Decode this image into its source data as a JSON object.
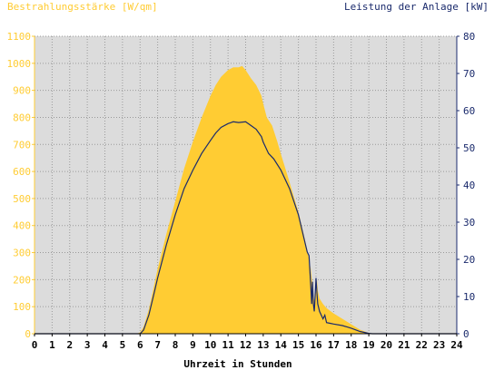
{
  "colors": {
    "irradiance": "#FFCC33",
    "power": "#1A2A6C",
    "plot_bg": "#DCDCDC",
    "left_axis": "#FFCC33",
    "right_axis": "#1A2A6C",
    "grid": "#9A9A9A"
  },
  "chart_data": {
    "type": "area",
    "title_left": "Bestrahlungsstärke [W/qm]",
    "title_right": "Leistung der Anlage [kW]",
    "xlabel": "Uhrzeit in Stunden",
    "xlim": [
      0,
      24
    ],
    "x_ticks": [
      "0",
      "1",
      "2",
      "3",
      "4",
      "5",
      "6",
      "7",
      "8",
      "9",
      "10",
      "11",
      "12",
      "13",
      "14",
      "15",
      "16",
      "17",
      "18",
      "19",
      "20",
      "21",
      "22",
      "23",
      "24"
    ],
    "y_left": {
      "lim": [
        0,
        1100
      ],
      "ticks": [
        "0",
        "100",
        "200",
        "300",
        "400",
        "500",
        "600",
        "700",
        "800",
        "900",
        "1000",
        "1100"
      ]
    },
    "y_right": {
      "lim": [
        0,
        80
      ],
      "ticks": [
        "0",
        "10",
        "20",
        "30",
        "40",
        "50",
        "60",
        "70",
        "80"
      ]
    },
    "grid": true,
    "series": [
      {
        "name": "Bestrahlungsstärke [W/qm]",
        "axis": "left",
        "kind": "area",
        "points": [
          [
            0,
            0
          ],
          [
            5.8,
            0
          ],
          [
            6.0,
            5
          ],
          [
            6.2,
            25
          ],
          [
            6.5,
            90
          ],
          [
            6.8,
            180
          ],
          [
            7.0,
            240
          ],
          [
            7.5,
            370
          ],
          [
            8.0,
            490
          ],
          [
            8.5,
            610
          ],
          [
            9.0,
            710
          ],
          [
            9.5,
            800
          ],
          [
            10.0,
            880
          ],
          [
            10.3,
            920
          ],
          [
            10.6,
            950
          ],
          [
            11.0,
            975
          ],
          [
            11.3,
            985
          ],
          [
            11.6,
            985
          ],
          [
            11.8,
            990
          ],
          [
            12.0,
            975
          ],
          [
            12.3,
            945
          ],
          [
            12.6,
            920
          ],
          [
            12.9,
            880
          ],
          [
            13.0,
            850
          ],
          [
            13.2,
            800
          ],
          [
            13.5,
            770
          ],
          [
            13.8,
            710
          ],
          [
            14.0,
            665
          ],
          [
            14.5,
            560
          ],
          [
            15.0,
            450
          ],
          [
            15.3,
            370
          ],
          [
            15.5,
            310
          ],
          [
            15.7,
            240
          ],
          [
            15.8,
            180
          ],
          [
            15.9,
            120
          ],
          [
            16.0,
            160
          ],
          [
            16.05,
            200
          ],
          [
            16.1,
            160
          ],
          [
            16.2,
            130
          ],
          [
            16.4,
            110
          ],
          [
            16.6,
            95
          ],
          [
            16.8,
            85
          ],
          [
            17.0,
            75
          ],
          [
            17.5,
            55
          ],
          [
            18.0,
            35
          ],
          [
            18.5,
            15
          ],
          [
            19.0,
            3
          ],
          [
            19.2,
            0
          ],
          [
            24,
            0
          ]
        ]
      },
      {
        "name": "Leistung der Anlage [kW]",
        "axis": "right",
        "kind": "line",
        "points": [
          [
            0,
            0
          ],
          [
            6.0,
            0
          ],
          [
            6.2,
            1
          ],
          [
            6.5,
            5
          ],
          [
            6.8,
            11
          ],
          [
            7.0,
            15
          ],
          [
            7.5,
            24
          ],
          [
            8.0,
            32
          ],
          [
            8.5,
            39
          ],
          [
            9.0,
            44
          ],
          [
            9.5,
            48.5
          ],
          [
            10.0,
            52
          ],
          [
            10.3,
            54
          ],
          [
            10.6,
            55.5
          ],
          [
            11.0,
            56.5
          ],
          [
            11.3,
            57
          ],
          [
            11.6,
            56.8
          ],
          [
            12.0,
            57
          ],
          [
            12.3,
            56
          ],
          [
            12.6,
            55
          ],
          [
            12.9,
            53
          ],
          [
            13.0,
            51.5
          ],
          [
            13.3,
            48.5
          ],
          [
            13.6,
            47
          ],
          [
            14.0,
            44
          ],
          [
            14.5,
            39
          ],
          [
            15.0,
            32
          ],
          [
            15.3,
            26
          ],
          [
            15.5,
            22
          ],
          [
            15.6,
            21
          ],
          [
            15.7,
            13
          ],
          [
            15.75,
            8
          ],
          [
            15.8,
            14
          ],
          [
            15.85,
            8
          ],
          [
            15.9,
            6
          ],
          [
            15.95,
            10
          ],
          [
            16.0,
            15
          ],
          [
            16.05,
            11
          ],
          [
            16.1,
            8
          ],
          [
            16.2,
            6
          ],
          [
            16.4,
            4
          ],
          [
            16.5,
            5
          ],
          [
            16.6,
            3
          ],
          [
            16.8,
            2.8
          ],
          [
            17.0,
            2.6
          ],
          [
            17.5,
            2.2
          ],
          [
            18.0,
            1.5
          ],
          [
            18.5,
            0.6
          ],
          [
            19.0,
            0.1
          ],
          [
            19.2,
            0
          ],
          [
            24,
            0
          ]
        ]
      }
    ]
  }
}
